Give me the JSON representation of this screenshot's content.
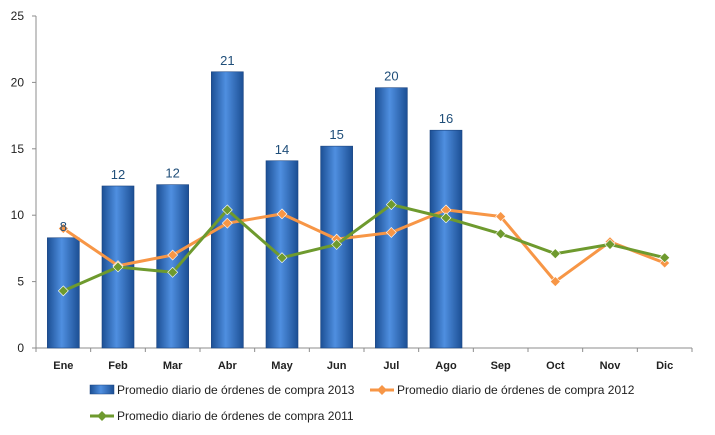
{
  "chart_data": {
    "type": "bar",
    "categories": [
      "Ene",
      "Feb",
      "Mar",
      "Abr",
      "May",
      "Jun",
      "Jul",
      "Ago",
      "Sep",
      "Oct",
      "Nov",
      "Dic"
    ],
    "series": [
      {
        "name": "Promedio diario de órdenes de compra 2013",
        "type": "bar",
        "color": "#3a76c4",
        "values": [
          8.3,
          12.2,
          12.3,
          20.8,
          14.1,
          15.2,
          19.6,
          16.4,
          null,
          null,
          null,
          null
        ],
        "data_labels": [
          "8",
          "12",
          "12",
          "21",
          "14",
          "15",
          "20",
          "16"
        ]
      },
      {
        "name": "Promedio diario de órdenes de compra 2012",
        "type": "line",
        "color": "#f79646",
        "marker": "diamond",
        "values": [
          9.0,
          6.2,
          7.0,
          9.4,
          10.1,
          8.2,
          8.7,
          10.4,
          9.9,
          5.0,
          8.0,
          6.4
        ]
      },
      {
        "name": "Promedio diario de órdenes de compra 2011",
        "type": "line",
        "color": "#6e9a2e",
        "marker": "diamond",
        "values": [
          4.3,
          6.1,
          5.7,
          10.4,
          6.8,
          7.8,
          10.8,
          9.8,
          8.6,
          7.1,
          7.8,
          6.8
        ]
      }
    ],
    "y_ticks": [
      "0",
      "5",
      "10",
      "15",
      "20",
      "25"
    ],
    "ylim": [
      0,
      25
    ],
    "grid": false,
    "legend_position": "bottom"
  }
}
